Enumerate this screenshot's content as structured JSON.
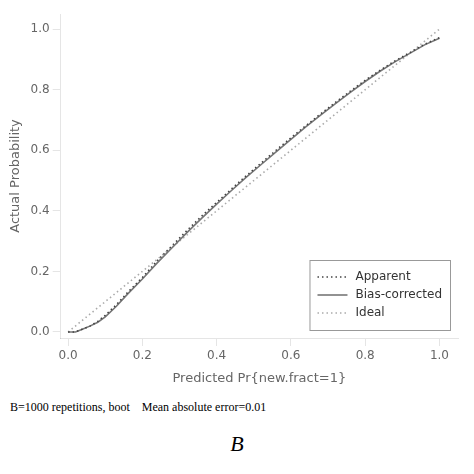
{
  "chart_data": {
    "type": "line",
    "xlabel": "Predicted Pr{new.fract=1}",
    "ylabel": "Actual Probability",
    "annotations": [
      "B=1000 repetitions, boot    Mean absolute error=0.01",
      "B"
    ],
    "xlim": [
      -0.02,
      1.05
    ],
    "ylim": [
      -0.02,
      1.05
    ],
    "xticks": [
      {
        "value": 0,
        "label": "0.0"
      },
      0.2,
      0.4,
      0.6,
      0.8,
      {
        "value": 1,
        "label": "1.0"
      }
    ],
    "yticks": [
      {
        "value": 0,
        "label": "0.0"
      },
      0.2,
      0.4,
      0.6,
      0.8,
      {
        "value": 1,
        "label": "1.0"
      }
    ],
    "grid": false,
    "legend": "lower right",
    "series": [
      {
        "name": "Apparent",
        "color": "#444444",
        "line_style": "dotted",
        "x": [
          0.0,
          0.02,
          0.04,
          0.06,
          0.08,
          0.1,
          0.13,
          0.16,
          0.2,
          0.24,
          0.28,
          0.32,
          0.36,
          0.4,
          0.44,
          0.48,
          0.52,
          0.56,
          0.6,
          0.64,
          0.68,
          0.72,
          0.76,
          0.8,
          0.84,
          0.88,
          0.92,
          0.96,
          1.0
        ],
        "values": [
          0.0,
          0.0,
          0.01,
          0.02,
          0.035,
          0.055,
          0.09,
          0.13,
          0.18,
          0.235,
          0.285,
          0.335,
          0.383,
          0.428,
          0.472,
          0.516,
          0.558,
          0.6,
          0.641,
          0.681,
          0.72,
          0.758,
          0.795,
          0.831,
          0.864,
          0.895,
          0.922,
          0.95,
          0.972
        ]
      },
      {
        "name": "Bias-corrected",
        "color": "#777777",
        "line_style": "solid",
        "x": [
          0.0,
          0.02,
          0.04,
          0.06,
          0.08,
          0.1,
          0.13,
          0.16,
          0.2,
          0.24,
          0.28,
          0.32,
          0.36,
          0.4,
          0.44,
          0.48,
          0.52,
          0.56,
          0.6,
          0.64,
          0.68,
          0.72,
          0.76,
          0.8,
          0.84,
          0.88,
          0.92,
          0.96,
          1.0
        ],
        "values": [
          0.0,
          0.0,
          0.01,
          0.02,
          0.032,
          0.05,
          0.085,
          0.125,
          0.175,
          0.228,
          0.278,
          0.328,
          0.376,
          0.422,
          0.467,
          0.511,
          0.553,
          0.595,
          0.636,
          0.677,
          0.716,
          0.754,
          0.791,
          0.827,
          0.861,
          0.892,
          0.92,
          0.948,
          0.97
        ]
      },
      {
        "name": "Ideal",
        "color": "#aaaaaa",
        "line_style": "dotted",
        "x": [
          0.0,
          1.0
        ],
        "values": [
          0.0,
          1.0
        ]
      }
    ]
  }
}
